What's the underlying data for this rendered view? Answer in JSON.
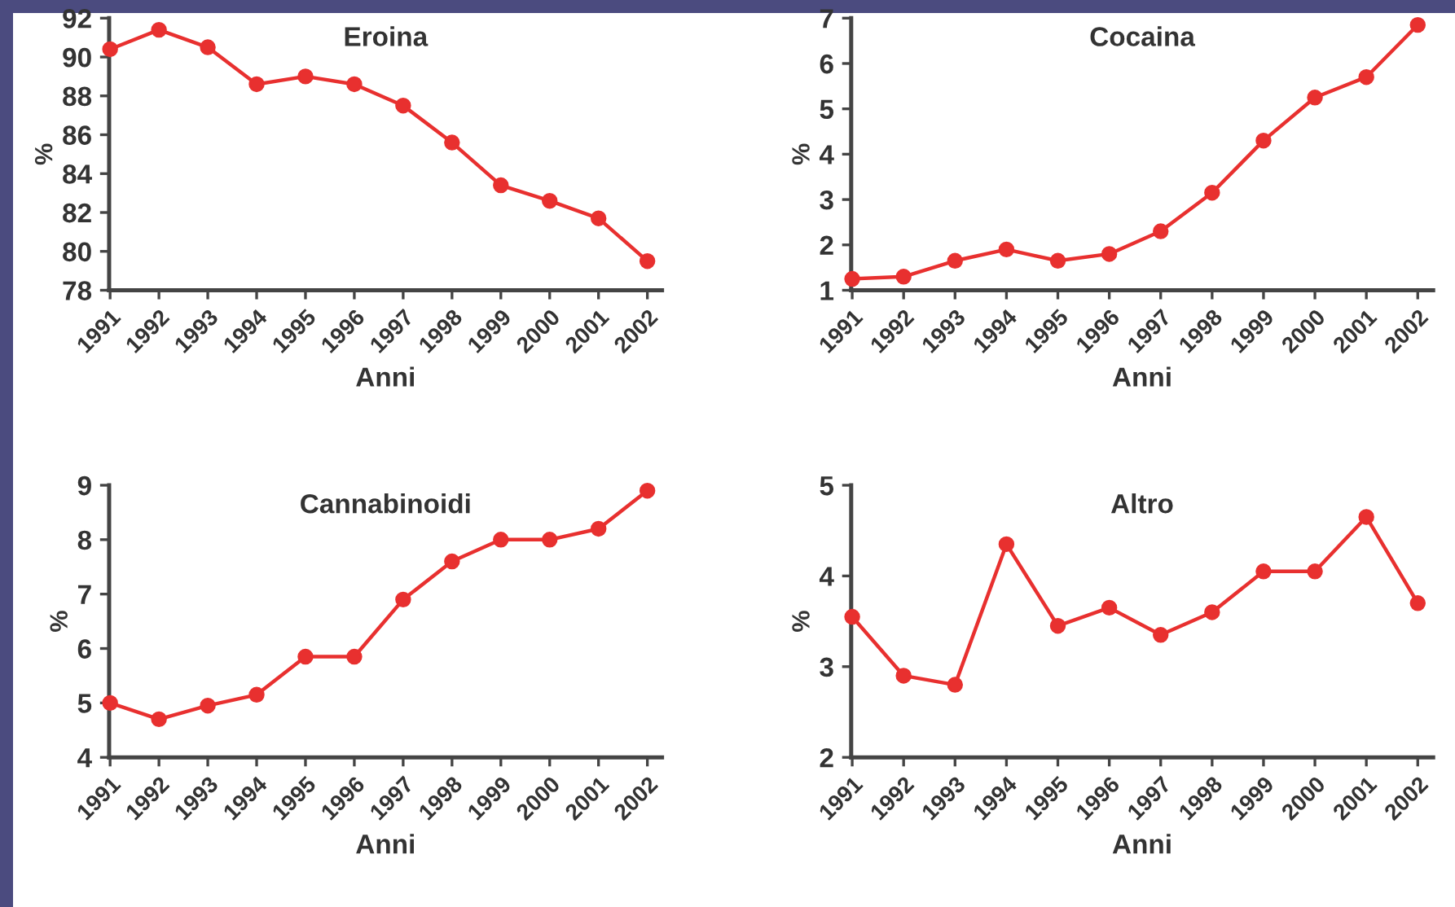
{
  "chart_data": [
    {
      "type": "line",
      "title": "Eroina",
      "xlabel": "Anni",
      "ylabel": "%",
      "categories": [
        "1991",
        "1992",
        "1993",
        "1994",
        "1995",
        "1996",
        "1997",
        "1998",
        "1999",
        "2000",
        "2001",
        "2002"
      ],
      "series": [
        {
          "color": "#e8302f",
          "values": [
            90.4,
            91.4,
            90.5,
            88.6,
            89.0,
            88.6,
            87.5,
            85.6,
            83.4,
            82.6,
            81.7,
            79.5
          ]
        }
      ],
      "ylim": [
        78,
        92
      ],
      "yticks": [
        78,
        80,
        82,
        84,
        86,
        88,
        90,
        92
      ],
      "grid": false,
      "legend": false,
      "marker": "circle",
      "line_style": "solid"
    },
    {
      "type": "line",
      "title": "Cocaina",
      "xlabel": "Anni",
      "ylabel": "%",
      "categories": [
        "1991",
        "1992",
        "1993",
        "1994",
        "1995",
        "1996",
        "1997",
        "1998",
        "1999",
        "2000",
        "2001",
        "2002"
      ],
      "series": [
        {
          "color": "#e8302f",
          "values": [
            1.25,
            1.3,
            1.65,
            1.9,
            1.65,
            1.8,
            2.3,
            3.15,
            4.3,
            5.25,
            5.7,
            6.85
          ]
        }
      ],
      "ylim": [
        1,
        7
      ],
      "yticks": [
        1,
        2,
        3,
        4,
        5,
        6,
        7
      ],
      "grid": false,
      "legend": false,
      "marker": "circle",
      "line_style": "solid"
    },
    {
      "type": "line",
      "title": "Cannabinoidi",
      "xlabel": "Anni",
      "ylabel": "%",
      "categories": [
        "1991",
        "1992",
        "1993",
        "1994",
        "1995",
        "1996",
        "1997",
        "1998",
        "1999",
        "2000",
        "2001",
        "2002"
      ],
      "series": [
        {
          "color": "#e8302f",
          "values": [
            5.0,
            4.7,
            4.95,
            5.15,
            5.85,
            5.85,
            6.9,
            7.6,
            8.0,
            8.0,
            8.2,
            8.9
          ]
        }
      ],
      "ylim": [
        4,
        9
      ],
      "yticks": [
        4,
        5,
        6,
        7,
        8,
        9
      ],
      "grid": false,
      "legend": false,
      "marker": "circle",
      "line_style": "solid"
    },
    {
      "type": "line",
      "title": "Altro",
      "xlabel": "Anni",
      "ylabel": "%",
      "categories": [
        "1991",
        "1992",
        "1993",
        "1994",
        "1995",
        "1996",
        "1997",
        "1998",
        "1999",
        "2000",
        "2001",
        "2002"
      ],
      "series": [
        {
          "color": "#e8302f",
          "values": [
            3.55,
            2.9,
            2.8,
            4.35,
            3.45,
            3.65,
            3.35,
            3.6,
            4.05,
            4.05,
            4.65,
            3.7
          ]
        }
      ],
      "ylim": [
        2,
        5
      ],
      "yticks": [
        2,
        3,
        4,
        5
      ],
      "grid": false,
      "legend": false,
      "marker": "circle",
      "line_style": "solid"
    }
  ]
}
